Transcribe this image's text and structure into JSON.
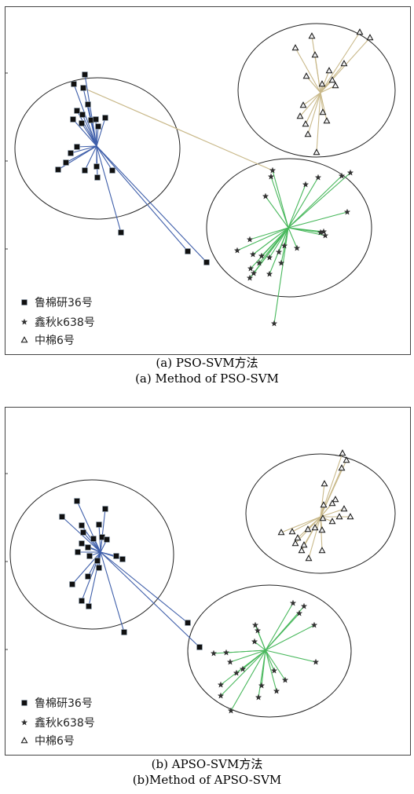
{
  "colors": {
    "cls1": "#3f5faa",
    "cls2": "#48b85c",
    "cls3": "#c9b98a",
    "circle": "#222222",
    "frame": "#444444"
  },
  "icons": {
    "cls1": "filled-square-marker",
    "cls2": "star-marker",
    "cls3": "hollow-triangle-marker"
  },
  "legend": [
    "鲁棉研36号",
    "鑫秋k638号",
    "中棉6号"
  ],
  "captions": {
    "a_cn": "(a) PSO-SVM方法",
    "a_en": "(a) Method of PSO-SVM",
    "b_cn": "(b) APSO-SVM方法",
    "b_en": "(b)Method of APSO-SVM"
  },
  "chart_data": [
    {
      "type": "scatter",
      "panel": "a",
      "grid": false,
      "legend_position": "bottom-left",
      "xlim": [
        0,
        517
      ],
      "ylim": [
        0,
        444
      ],
      "clusters": [
        {
          "series": 0,
          "center": [
            117,
            178
          ],
          "ellipse": {
            "cx": 118,
            "cy": 181,
            "rx": 105,
            "ry": 90
          },
          "points": [
            [
              102,
              87
            ],
            [
              88,
              99
            ],
            [
              100,
              104
            ],
            [
              106,
              125
            ],
            [
              92,
              133
            ],
            [
              99,
              138
            ],
            [
              87,
              144
            ],
            [
              98,
              149
            ],
            [
              110,
              145
            ],
            [
              116,
              144
            ],
            [
              128,
              142
            ],
            [
              119,
              153
            ],
            [
              92,
              179
            ],
            [
              84,
              187
            ],
            [
              78,
              199
            ],
            [
              68,
              208
            ],
            [
              102,
              209
            ],
            [
              117,
              204
            ],
            [
              118,
              218
            ],
            [
              137,
              209
            ],
            [
              148,
              288
            ],
            [
              233,
              312
            ],
            [
              257,
              326
            ]
          ]
        },
        {
          "series": 1,
          "center": [
            361,
            282
          ],
          "ellipse": {
            "cx": 362,
            "cy": 282,
            "rx": 105,
            "ry": 88
          },
          "points": [
            [
              341,
              209
            ],
            [
              332,
              242
            ],
            [
              339,
              217
            ],
            [
              383,
              227
            ],
            [
              399,
              218
            ],
            [
              429,
              216
            ],
            [
              440,
              212
            ],
            [
              436,
              262
            ],
            [
              406,
              287
            ],
            [
              402,
              288
            ],
            [
              408,
              292
            ],
            [
              372,
              308
            ],
            [
              356,
              305
            ],
            [
              337,
              320
            ],
            [
              312,
              297
            ],
            [
              296,
              311
            ],
            [
              316,
              316
            ],
            [
              327,
              318
            ],
            [
              349,
              313
            ],
            [
              352,
              327
            ],
            [
              324,
              327
            ],
            [
              313,
              334
            ],
            [
              317,
              340
            ],
            [
              312,
              346
            ],
            [
              337,
              341
            ],
            [
              343,
              404
            ]
          ]
        },
        {
          "series": 2,
          "center": [
            402,
            110
          ],
          "ellipse": {
            "cx": 397,
            "cy": 107,
            "rx": 100,
            "ry": 85
          },
          "points": [
            [
              370,
              53
            ],
            [
              391,
              38
            ],
            [
              395,
              62
            ],
            [
              452,
              33
            ],
            [
              465,
              40
            ],
            [
              432,
              73
            ],
            [
              384,
              89
            ],
            [
              404,
              99
            ],
            [
              417,
              94
            ],
            [
              413,
              82
            ],
            [
              421,
              101
            ],
            [
              380,
              126
            ],
            [
              376,
              140
            ],
            [
              405,
              135
            ],
            [
              410,
              146
            ],
            [
              383,
              150
            ],
            [
              386,
              163
            ],
            [
              397,
              186
            ]
          ]
        }
      ],
      "bridges": [
        [
          0,
          2,
          1,
          0
        ]
      ]
    },
    {
      "type": "scatter",
      "panel": "b",
      "grid": false,
      "legend_position": "bottom-left",
      "xlim": [
        0,
        517
      ],
      "ylim": [
        0,
        444
      ],
      "clusters": [
        {
          "series": 0,
          "center": [
            122,
            185
          ],
          "ellipse": {
            "cx": 111,
            "cy": 188,
            "rx": 104,
            "ry": 95
          },
          "points": [
            [
              92,
              120
            ],
            [
              128,
              130
            ],
            [
              73,
              140
            ],
            [
              98,
              151
            ],
            [
              120,
              150
            ],
            [
              100,
              160
            ],
            [
              113,
              168
            ],
            [
              124,
              166
            ],
            [
              130,
              169
            ],
            [
              98,
              174
            ],
            [
              106,
              179
            ],
            [
              93,
              185
            ],
            [
              108,
              190
            ],
            [
              142,
              190
            ],
            [
              118,
              196
            ],
            [
              150,
              194
            ],
            [
              120,
              205
            ],
            [
              106,
              216
            ],
            [
              86,
              226
            ],
            [
              98,
              247
            ],
            [
              107,
              254
            ],
            [
              152,
              287
            ],
            [
              233,
              275
            ],
            [
              248,
              306
            ]
          ]
        },
        {
          "series": 1,
          "center": [
            332,
            310
          ],
          "ellipse": {
            "cx": 337,
            "cy": 311,
            "rx": 104,
            "ry": 84
          },
          "points": [
            [
              367,
              250
            ],
            [
              381,
              254
            ],
            [
              375,
              263
            ],
            [
              319,
              278
            ],
            [
              394,
              278
            ],
            [
              322,
              285
            ],
            [
              318,
              299
            ],
            [
              266,
              314
            ],
            [
              282,
              313
            ],
            [
              287,
              325
            ],
            [
              303,
              334
            ],
            [
              295,
              339
            ],
            [
              327,
              355
            ],
            [
              343,
              336
            ],
            [
              357,
              348
            ],
            [
              396,
              325
            ],
            [
              275,
              354
            ],
            [
              346,
              362
            ],
            [
              323,
              370
            ],
            [
              275,
              368
            ],
            [
              288,
              387
            ]
          ]
        },
        {
          "series": 2,
          "center": [
            402,
            140
          ],
          "ellipse": {
            "cx": 402,
            "cy": 136,
            "rx": 95,
            "ry": 76
          },
          "points": [
            [
              430,
              59
            ],
            [
              429,
              78
            ],
            [
              435,
              68
            ],
            [
              407,
              98
            ],
            [
              421,
              118
            ],
            [
              417,
              123
            ],
            [
              406,
              125
            ],
            [
              432,
              130
            ],
            [
              426,
              140
            ],
            [
              440,
              140
            ],
            [
              405,
              142
            ],
            [
              417,
              146
            ],
            [
              352,
              160
            ],
            [
              366,
              159
            ],
            [
              373,
              167
            ],
            [
              370,
              174
            ],
            [
              386,
              156
            ],
            [
              395,
              154
            ],
            [
              381,
              176
            ],
            [
              378,
              183
            ],
            [
              387,
              193
            ],
            [
              404,
              183
            ],
            [
              404,
              157
            ]
          ]
        }
      ],
      "bridges": []
    }
  ]
}
